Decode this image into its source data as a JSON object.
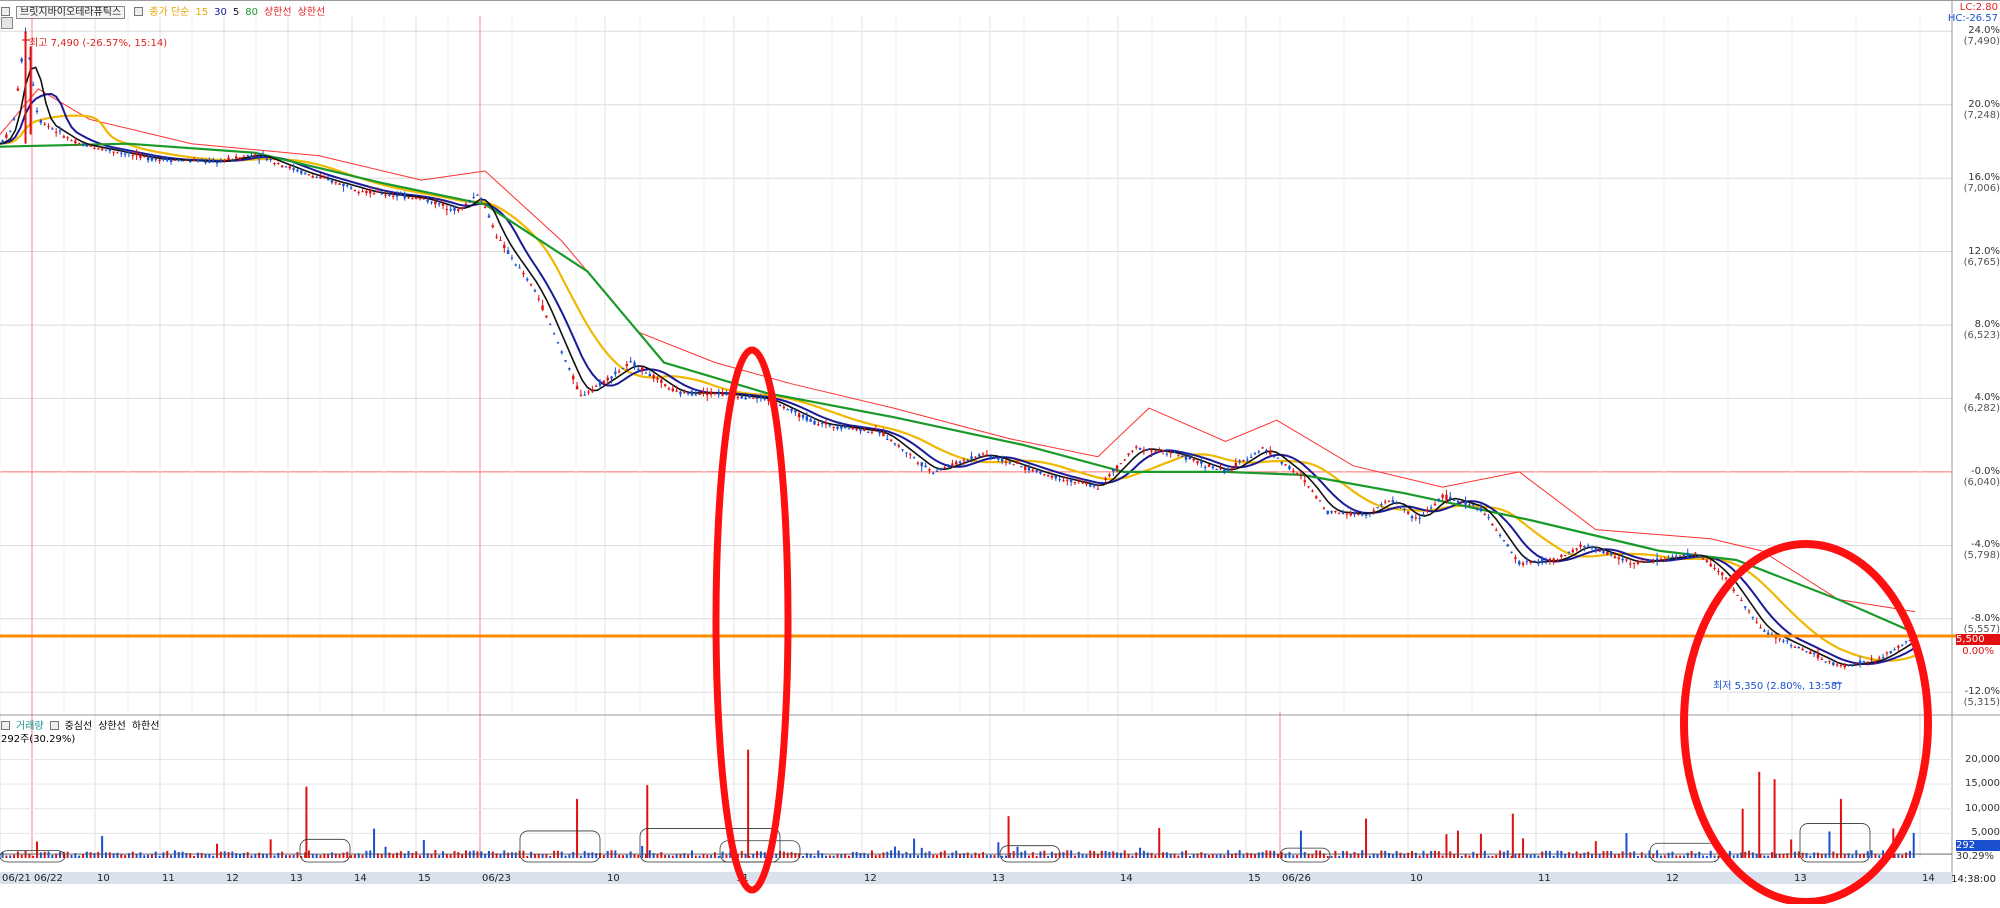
{
  "legend_top": {
    "ticker": "브릿지바이오테라퓨틱스",
    "items": [
      {
        "label": "종가 단순",
        "color": "#e6a700"
      },
      {
        "label": "15",
        "color": "#e6a700"
      },
      {
        "label": "30",
        "color": "#1b1b9a"
      },
      {
        "label": "5",
        "color": "#111111"
      },
      {
        "label": "80",
        "color": "#1a9a2a"
      },
      {
        "label": "상한선",
        "color": "#e02020"
      },
      {
        "label": "상한선",
        "color": "#e02020"
      }
    ]
  },
  "legend_volume": {
    "items": [
      {
        "label": "거래량",
        "color": "#1a9a9a"
      },
      {
        "label": "중심선",
        "color": "#222222"
      },
      {
        "label": "상한선",
        "color": "#222222"
      },
      {
        "label": "하한선",
        "color": "#222222"
      }
    ],
    "current": "292주(30.29%)"
  },
  "top_right": {
    "lc": "LC:2.80",
    "hc": "HC:-26.57"
  },
  "annotations": {
    "high": "최고 7,490 (-26.57%, 15:14)",
    "low": "최저 5,350 (2.80%, 13:58)"
  },
  "price_badge": "5,500",
  "price_badge_pct": "0.00%",
  "volume_badge": "292",
  "volume_badge_pct": "30.29%",
  "time_axis_last": "14:38:00",
  "colors": {
    "up": "#e01010",
    "down": "#1a4fd0",
    "ma15": "#f0b800",
    "ma30": "#1b1b9a",
    "ma5": "#111111",
    "ma80": "#1a9a2a",
    "envelope": "#ff3030",
    "current_line": "#ff8c00",
    "circle": "#ff1010"
  },
  "chart_data": {
    "type": "candlestick",
    "x_ticks": [
      "06/21",
      "06/22",
      "10",
      "11",
      "12",
      "13",
      "14",
      "15",
      "06/23",
      "10",
      "11",
      "12",
      "13",
      "14",
      "15",
      "06/26",
      "10",
      "11",
      "12",
      "13",
      "14"
    ],
    "y_ticks": [
      {
        "pct": "24.0%",
        "price": "(7,490)"
      },
      {
        "pct": "20.0%",
        "price": "(7,248)"
      },
      {
        "pct": "16.0%",
        "price": "(7,006)"
      },
      {
        "pct": "12.0%",
        "price": "(6,765)"
      },
      {
        "pct": "8.0%",
        "price": "(6,523)"
      },
      {
        "pct": "4.0%",
        "price": "(6,282)"
      },
      {
        "pct": "-0.0%",
        "price": "(6,040)"
      },
      {
        "pct": "-4.0%",
        "price": "(5,798)"
      },
      {
        "pct": "-8.0%",
        "price": "(5,557)"
      },
      {
        "pct": "-12.0%",
        "price": "(5,315)"
      }
    ],
    "ylim": [
      5250,
      7540
    ],
    "volume_ticks": [
      "20,000",
      "15,000",
      "10,000",
      "5,000"
    ],
    "volume_ylim": [
      0,
      26000
    ],
    "current_price": 5500,
    "reference_price": 6040,
    "price_path": [
      {
        "x": 0,
        "y": 7120
      },
      {
        "x": 10,
        "y": 7170
      },
      {
        "x": 20,
        "y": 7490
      },
      {
        "x": 30,
        "y": 7200
      },
      {
        "x": 60,
        "y": 7120
      },
      {
        "x": 120,
        "y": 7070
      },
      {
        "x": 170,
        "y": 7060
      },
      {
        "x": 200,
        "y": 7085
      },
      {
        "x": 240,
        "y": 7020
      },
      {
        "x": 290,
        "y": 6960
      },
      {
        "x": 330,
        "y": 6940
      },
      {
        "x": 360,
        "y": 6900
      },
      {
        "x": 375,
        "y": 6960
      },
      {
        "x": 390,
        "y": 6810
      },
      {
        "x": 420,
        "y": 6630
      },
      {
        "x": 455,
        "y": 6290
      },
      {
        "x": 470,
        "y": 6330
      },
      {
        "x": 495,
        "y": 6400
      },
      {
        "x": 530,
        "y": 6300
      },
      {
        "x": 560,
        "y": 6300
      },
      {
        "x": 600,
        "y": 6280
      },
      {
        "x": 640,
        "y": 6200
      },
      {
        "x": 690,
        "y": 6170
      },
      {
        "x": 730,
        "y": 6040
      },
      {
        "x": 770,
        "y": 6100
      },
      {
        "x": 820,
        "y": 6030
      },
      {
        "x": 860,
        "y": 5990
      },
      {
        "x": 890,
        "y": 6120
      },
      {
        "x": 920,
        "y": 6100
      },
      {
        "x": 960,
        "y": 6040
      },
      {
        "x": 990,
        "y": 6120
      },
      {
        "x": 1020,
        "y": 6020
      },
      {
        "x": 1040,
        "y": 5910
      },
      {
        "x": 1070,
        "y": 5900
      },
      {
        "x": 1090,
        "y": 5950
      },
      {
        "x": 1110,
        "y": 5880
      },
      {
        "x": 1130,
        "y": 5960
      },
      {
        "x": 1160,
        "y": 5920
      },
      {
        "x": 1190,
        "y": 5740
      },
      {
        "x": 1220,
        "y": 5750
      },
      {
        "x": 1240,
        "y": 5800
      },
      {
        "x": 1280,
        "y": 5740
      },
      {
        "x": 1330,
        "y": 5770
      },
      {
        "x": 1350,
        "y": 5700
      },
      {
        "x": 1380,
        "y": 5520
      },
      {
        "x": 1420,
        "y": 5440
      },
      {
        "x": 1440,
        "y": 5400
      },
      {
        "x": 1470,
        "y": 5420
      },
      {
        "x": 1490,
        "y": 5470
      },
      {
        "x": 1500,
        "y": 5500
      }
    ],
    "ma80_path": [
      {
        "x": 0,
        "y": 7110
      },
      {
        "x": 100,
        "y": 7120
      },
      {
        "x": 200,
        "y": 7090
      },
      {
        "x": 300,
        "y": 6990
      },
      {
        "x": 380,
        "y": 6920
      },
      {
        "x": 460,
        "y": 6700
      },
      {
        "x": 520,
        "y": 6400
      },
      {
        "x": 600,
        "y": 6300
      },
      {
        "x": 700,
        "y": 6220
      },
      {
        "x": 800,
        "y": 6130
      },
      {
        "x": 880,
        "y": 6040
      },
      {
        "x": 960,
        "y": 6040
      },
      {
        "x": 1020,
        "y": 6030
      },
      {
        "x": 1100,
        "y": 5970
      },
      {
        "x": 1200,
        "y": 5880
      },
      {
        "x": 1300,
        "y": 5780
      },
      {
        "x": 1360,
        "y": 5750
      },
      {
        "x": 1440,
        "y": 5620
      },
      {
        "x": 1500,
        "y": 5510
      }
    ],
    "envelope_upper_path": [
      {
        "x": 0,
        "y": 7150
      },
      {
        "x": 30,
        "y": 7300
      },
      {
        "x": 70,
        "y": 7200
      },
      {
        "x": 150,
        "y": 7120
      },
      {
        "x": 250,
        "y": 7080
      },
      {
        "x": 330,
        "y": 7000
      },
      {
        "x": 380,
        "y": 7030
      },
      {
        "x": 440,
        "y": 6800
      },
      {
        "x": 500,
        "y": 6500
      },
      {
        "x": 560,
        "y": 6400
      },
      {
        "x": 620,
        "y": 6330
      },
      {
        "x": 700,
        "y": 6250
      },
      {
        "x": 790,
        "y": 6150
      },
      {
        "x": 860,
        "y": 6090
      },
      {
        "x": 900,
        "y": 6250
      },
      {
        "x": 960,
        "y": 6140
      },
      {
        "x": 1000,
        "y": 6210
      },
      {
        "x": 1060,
        "y": 6060
      },
      {
        "x": 1130,
        "y": 5990
      },
      {
        "x": 1190,
        "y": 6040
      },
      {
        "x": 1250,
        "y": 5850
      },
      {
        "x": 1340,
        "y": 5820
      },
      {
        "x": 1380,
        "y": 5780
      },
      {
        "x": 1440,
        "y": 5620
      },
      {
        "x": 1500,
        "y": 5580
      }
    ],
    "volume_bars": [
      {
        "x": 240,
        "v": 14500
      },
      {
        "x": 452,
        "v": 12000
      },
      {
        "x": 507,
        "v": 14800
      },
      {
        "x": 586,
        "v": 22000
      },
      {
        "x": 790,
        "v": 8500
      },
      {
        "x": 1070,
        "v": 8000
      },
      {
        "x": 1185,
        "v": 9000
      },
      {
        "x": 1365,
        "v": 10000
      },
      {
        "x": 1378,
        "v": 17500
      },
      {
        "x": 1390,
        "v": 16000
      },
      {
        "x": 1442,
        "v": 12000
      },
      {
        "x": 1483,
        "v": 6000
      }
    ]
  }
}
